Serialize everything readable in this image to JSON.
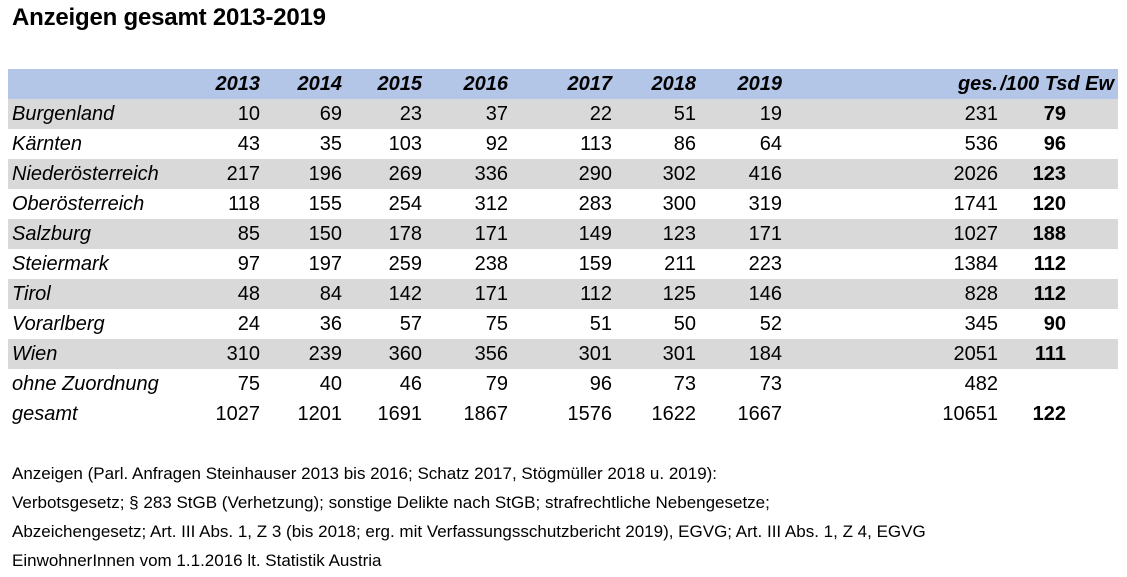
{
  "title": "Anzeigen gesamt 2013-2019",
  "table": {
    "headers": [
      "",
      "2013",
      "2014",
      "2015",
      "2016",
      "2017",
      "2018",
      "2019",
      "",
      "ges.",
      "/100 Tsd Ew"
    ],
    "rows": [
      {
        "region": "Burgenland",
        "values": [
          "10",
          "69",
          "23",
          "37",
          "22",
          "51",
          "19"
        ],
        "total": "231",
        "rate": "79",
        "shaded": true
      },
      {
        "region": "Kärnten",
        "values": [
          "43",
          "35",
          "103",
          "92",
          "113",
          "86",
          "64"
        ],
        "total": "536",
        "rate": "96",
        "shaded": false
      },
      {
        "region": "Niederösterreich",
        "values": [
          "217",
          "196",
          "269",
          "336",
          "290",
          "302",
          "416"
        ],
        "total": "2026",
        "rate": "123",
        "shaded": true
      },
      {
        "region": "Oberösterreich",
        "values": [
          "118",
          "155",
          "254",
          "312",
          "283",
          "300",
          "319"
        ],
        "total": "1741",
        "rate": "120",
        "shaded": false
      },
      {
        "region": "Salzburg",
        "values": [
          "85",
          "150",
          "178",
          "171",
          "149",
          "123",
          "171"
        ],
        "total": "1027",
        "rate": "188",
        "shaded": true
      },
      {
        "region": "Steiermark",
        "values": [
          "97",
          "197",
          "259",
          "238",
          "159",
          "211",
          "223"
        ],
        "total": "1384",
        "rate": "112",
        "shaded": false
      },
      {
        "region": "Tirol",
        "values": [
          "48",
          "84",
          "142",
          "171",
          "112",
          "125",
          "146"
        ],
        "total": "828",
        "rate": "112",
        "shaded": true
      },
      {
        "region": "Vorarlberg",
        "values": [
          "24",
          "36",
          "57",
          "75",
          "51",
          "50",
          "52"
        ],
        "total": "345",
        "rate": "90",
        "shaded": false
      },
      {
        "region": "Wien",
        "values": [
          "310",
          "239",
          "360",
          "356",
          "301",
          "301",
          "184"
        ],
        "total": "2051",
        "rate": "111",
        "shaded": true
      },
      {
        "region": "ohne Zuordnung",
        "values": [
          "75",
          "40",
          "46",
          "79",
          "96",
          "73",
          "73"
        ],
        "total": "482",
        "rate": "",
        "shaded": false
      },
      {
        "region": "gesamt",
        "values": [
          "1027",
          "1201",
          "1691",
          "1867",
          "1576",
          "1622",
          "1667"
        ],
        "total": "10651",
        "rate": "122",
        "shaded": false
      }
    ]
  },
  "notes": [
    "Anzeigen (Parl. Anfragen Steinhauser 2013 bis 2016; Schatz 2017, Stögmüller 2018 u. 2019):",
    "Verbotsgesetz; § 283 StGB (Verhetzung); sonstige Delikte nach StGB; strafrechtliche Nebengesetze;",
    "Abzeichengesetz; Art. III Abs. 1, Z 3 (bis 2018; erg. mit Verfassungsschutzbericht 2019), EGVG; Art. III Abs. 1, Z 4, EGVG",
    "EinwohnerInnen vom 1.1.2016 lt. Statistik Austria"
  ],
  "colors": {
    "header_fill": "#b4c6e7",
    "row_shade": "#d9d9d9"
  }
}
